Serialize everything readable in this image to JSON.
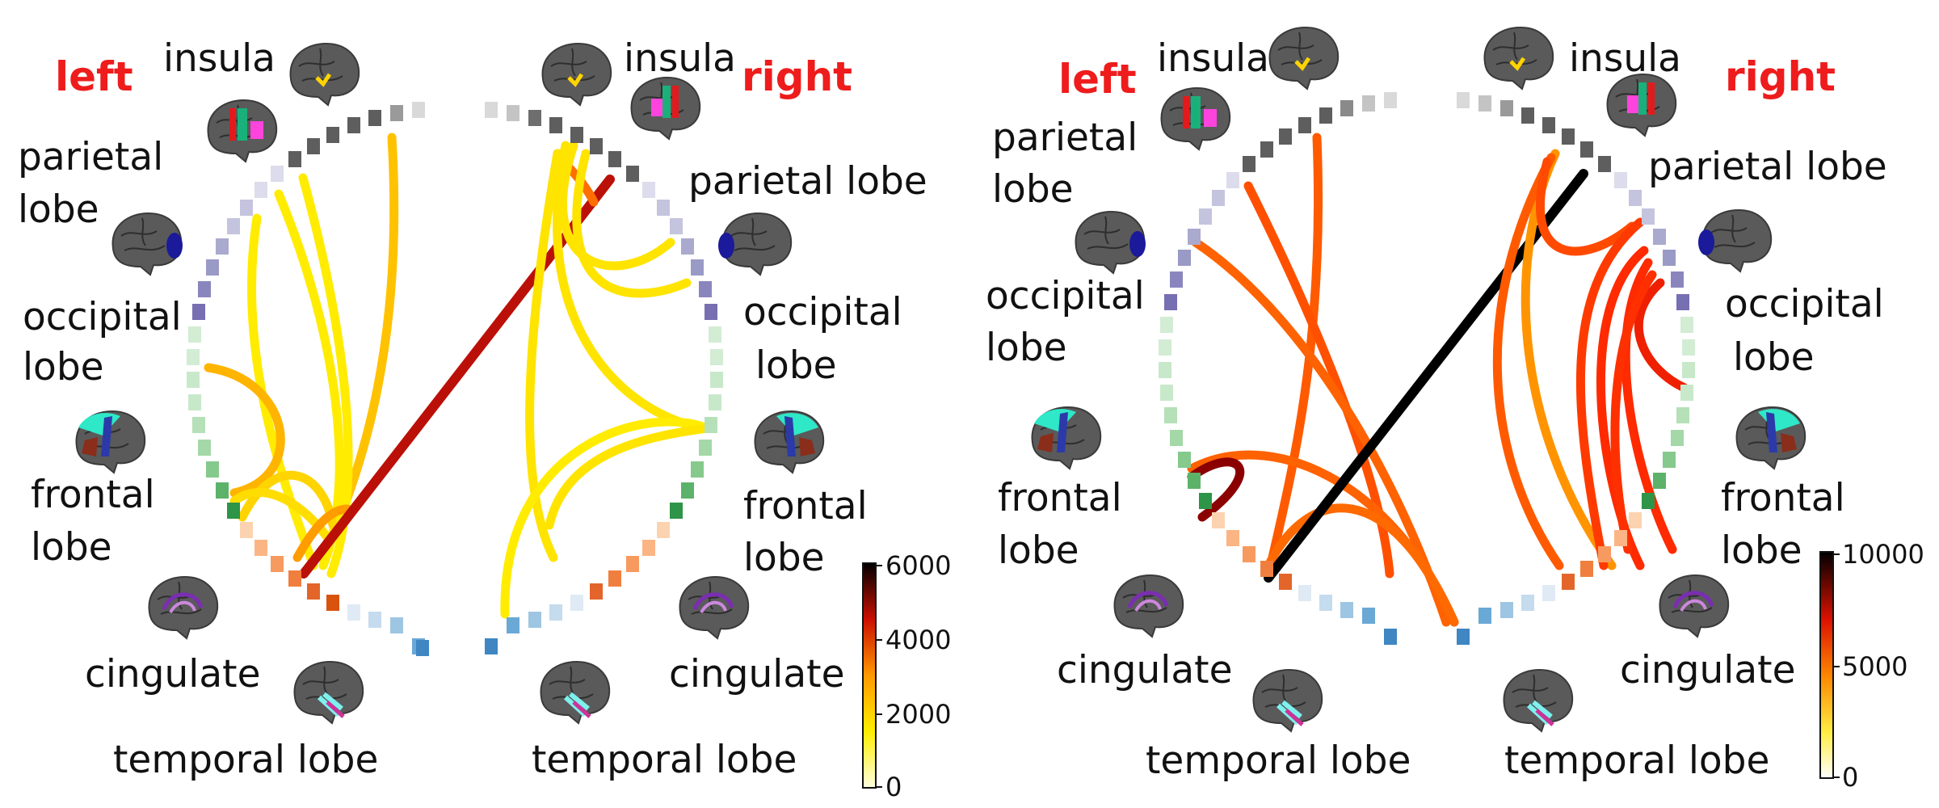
{
  "colors": {
    "hemisphere_label": "#ee1c1c",
    "lobe_insula": "#4a4a4a",
    "lobe_parietal": "#8f8fc2",
    "lobe_occipital": "#7a72b3",
    "lobe_frontal": "#a9dcae",
    "lobe_cingulate": "#e8652a",
    "lobe_temporal": "#4a8fc8"
  },
  "panels": [
    {
      "hemispheres": {
        "left": "left",
        "right": "right"
      },
      "labels": {
        "insula_left": "insula",
        "insula_right": "insula",
        "parietal_left_1": "parietal",
        "parietal_left_2": "lobe",
        "parietal_right": "parietal lobe",
        "occipital_left_1": "occipital",
        "occipital_left_2": "lobe",
        "occipital_right_1": "occipital",
        "occipital_right_2": "lobe",
        "frontal_left_1": "frontal",
        "frontal_left_2": "lobe",
        "frontal_right_1": "frontal",
        "frontal_right_2": "lobe",
        "cingulate_left": "cingulate",
        "cingulate_right": "cingulate",
        "temporal_left": "temporal lobe",
        "temporal_right": "temporal lobe"
      },
      "colorbar": {
        "ticks": [
          "6000",
          "4000",
          "2000",
          "0"
        ],
        "colormap": "yellow-orange-red-black"
      }
    },
    {
      "hemispheres": {
        "left": "left",
        "right": "right"
      },
      "labels": {
        "insula_left": "insula",
        "insula_right": "insula",
        "parietal_left_1": "parietal",
        "parietal_left_2": "lobe",
        "parietal_right": "parietal lobe",
        "occipital_left_1": "occipital",
        "occipital_left_2": "lobe",
        "occipital_right_1": "occipital",
        "occipital_right_2": "lobe",
        "frontal_left_1": "frontal",
        "frontal_left_2": "lobe",
        "frontal_right_1": "frontal",
        "frontal_right_2": "lobe",
        "cingulate_left": "cingulate",
        "cingulate_right": "cingulate",
        "temporal_left": "temporal lobe",
        "temporal_right": "temporal lobe"
      },
      "colorbar": {
        "ticks": [
          "10000",
          "5000",
          "0"
        ],
        "colormap": "white-yellow-orange-red-black"
      }
    }
  ]
}
